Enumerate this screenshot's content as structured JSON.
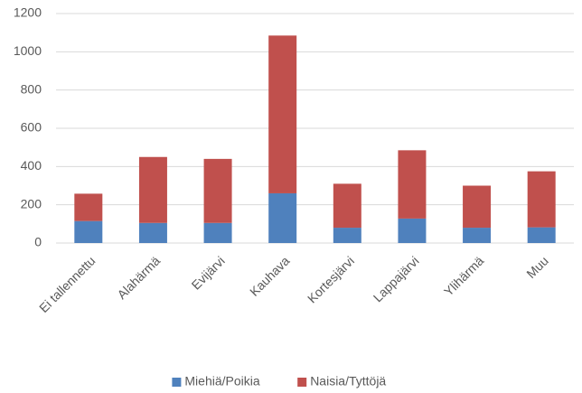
{
  "chart_data": {
    "type": "stacked_bar",
    "categories": [
      "Ei tallennettu",
      "Alahärmä",
      "Evijärvi",
      "Kauhava",
      "Kortesjärvi",
      "Lappajärvi",
      "Ylihärmä",
      "Muu"
    ],
    "series": [
      {
        "name": "Miehiä/Poikia",
        "color": "#4f81bd",
        "values": [
          115,
          105,
          105,
          260,
          80,
          128,
          80,
          82
        ]
      },
      {
        "name": "Naisia/Tyttöjä",
        "color": "#c0504d",
        "values": [
          143,
          345,
          335,
          825,
          230,
          357,
          220,
          293
        ]
      }
    ],
    "ylim": [
      0,
      1200
    ],
    "yticks": [
      0,
      200,
      400,
      600,
      800,
      1000,
      1200
    ],
    "grid": true,
    "legend": "bottom"
  }
}
